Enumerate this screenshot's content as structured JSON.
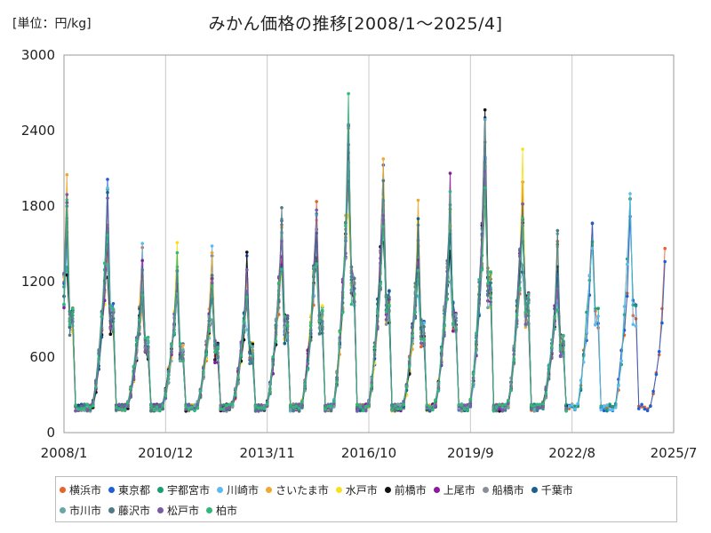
{
  "header": {
    "unit_label": "[単位：円/kg]",
    "title": "みかん価格の推移[2008/1～2025/4]"
  },
  "chart_data": {
    "type": "line",
    "title": "みかん価格の推移[2008/1～2025/4]",
    "ylabel": "[単位：円/kg]",
    "xlabel": "",
    "ylim": [
      0,
      3000
    ],
    "xlim": [
      "2008/1",
      "2025/7"
    ],
    "x_ticks": [
      "2008/1",
      "2010/12",
      "2013/11",
      "2016/10",
      "2019/9",
      "2022/8",
      "2025/7"
    ],
    "y_ticks": [
      0,
      600,
      1200,
      1800,
      2400,
      3000
    ],
    "grid": "vertical",
    "legend_position": "bottom",
    "series_names": [
      "横浜市",
      "東京都",
      "宇都宮市",
      "川崎市",
      "さいたま市",
      "水戸市",
      "前橋市",
      "上尾市",
      "船橋市",
      "千葉市",
      "市川市",
      "藤沢市",
      "松戸市",
      "柏市"
    ],
    "series_colors": [
      "#e8632a",
      "#1f5fd6",
      "#1a9e70",
      "#5bbcf0",
      "#f0a830",
      "#f7e11a",
      "#111111",
      "#8b1a9e",
      "#8a8f96",
      "#1c5e8c",
      "#6aa6a8",
      "#4f7b86",
      "#7a5ba8",
      "#2fb877"
    ],
    "seasonal_peaks": [
      {
        "month": "2008/2",
        "value": 1950
      },
      {
        "month": "2009/4",
        "value": 2020
      },
      {
        "month": "2010/4",
        "value": 1500
      },
      {
        "month": "2011/4",
        "value": 1420
      },
      {
        "month": "2012/4",
        "value": 1450
      },
      {
        "month": "2013/4",
        "value": 1420
      },
      {
        "month": "2014/4",
        "value": 1840
      },
      {
        "month": "2015/4",
        "value": 2000
      },
      {
        "month": "2016/3",
        "value": 2620
      },
      {
        "month": "2017/3",
        "value": 2220
      },
      {
        "month": "2018/3",
        "value": 1780
      },
      {
        "month": "2019/2",
        "value": 2080
      },
      {
        "month": "2020/2",
        "value": 2590
      },
      {
        "month": "2021/3",
        "value": 2190
      },
      {
        "month": "2022/3",
        "value": 1530
      },
      {
        "month": "2023/3",
        "value": 1990
      },
      {
        "month": "2024/4",
        "value": 2110
      },
      {
        "month": "2025/4",
        "value": 1470
      }
    ],
    "off_season_low": {
      "value": 200
    }
  }
}
